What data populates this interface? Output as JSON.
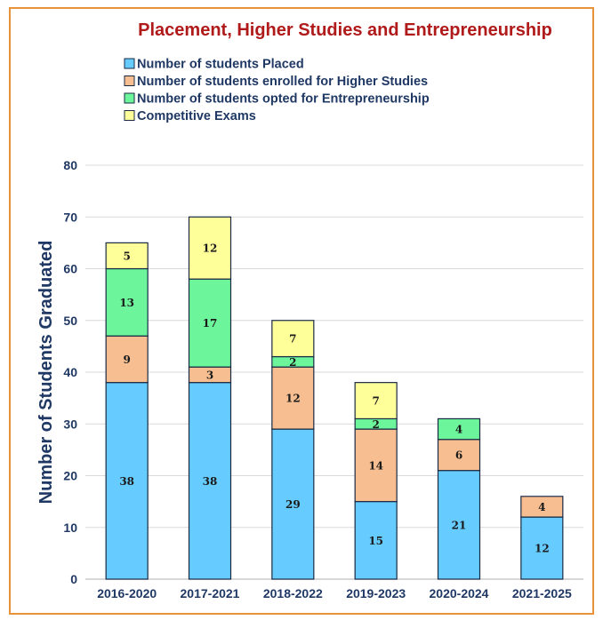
{
  "chart_data": {
    "type": "bar",
    "stacked": true,
    "title": "Placement, Higher Studies and Entrepreneurship",
    "ylabel": "Number of Students Graduated",
    "xlabel": "",
    "ylim": [
      0,
      80
    ],
    "yticks": [
      0,
      10,
      20,
      30,
      40,
      50,
      60,
      70,
      80
    ],
    "grid": true,
    "legend_position": "top-left",
    "categories": [
      "2016-2020",
      "2017-2021",
      "2018-2022",
      "2019-2023",
      "2020-2024",
      "2021-2025"
    ],
    "series": [
      {
        "name": "Number of students Placed",
        "color": "#66ccff",
        "values": [
          38,
          38,
          29,
          15,
          21,
          12
        ]
      },
      {
        "name": "Number of students enrolled for Higher Studies",
        "color": "#f7bf91",
        "values": [
          9,
          3,
          12,
          14,
          6,
          4
        ]
      },
      {
        "name": "Number of students opted for Entrepreneurship",
        "color": "#6cf59a",
        "values": [
          13,
          17,
          2,
          2,
          4,
          0
        ]
      },
      {
        "name": "Competitive Exams",
        "color": "#ffff99",
        "values": [
          5,
          12,
          7,
          7,
          0,
          0
        ]
      }
    ],
    "colors": {
      "title": "#b01a1a",
      "text": "#1f3864",
      "border": "#e8923a",
      "bar_outline": "#1a2a44",
      "grid": "#d9d9d9"
    }
  }
}
